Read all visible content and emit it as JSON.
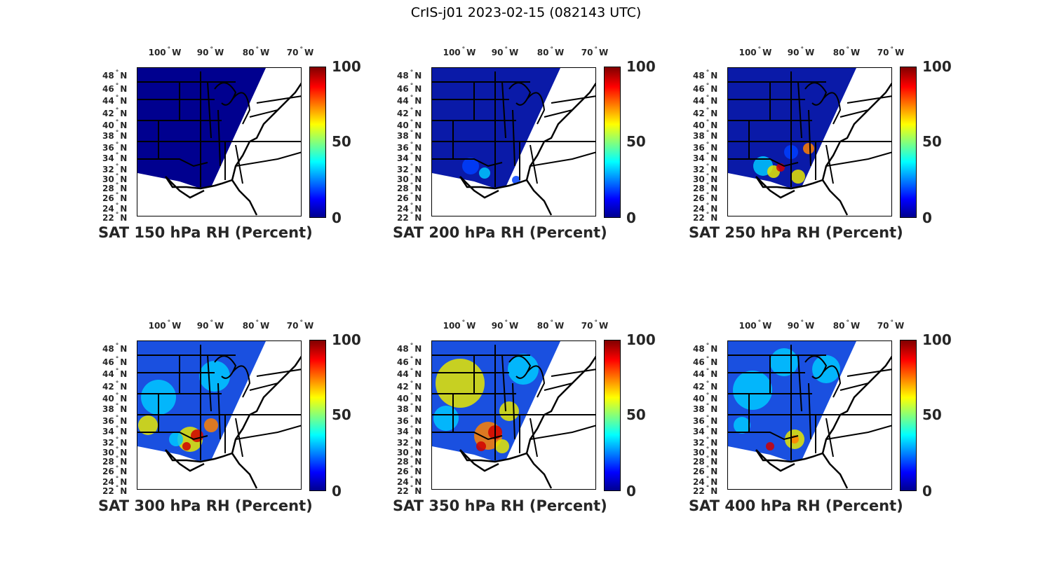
{
  "title": "CrIS-j01 2023-02-15 (082143 UTC)",
  "lon_labels": [
    "100",
    "90",
    "80",
    "70"
  ],
  "lon_suffix": "W",
  "lat_labels": [
    "48",
    "46",
    "44",
    "42",
    "40",
    "38",
    "36",
    "34",
    "32",
    "30",
    "28",
    "26",
    "24",
    "22"
  ],
  "lat_suffix": "N",
  "degree_symbol": "°",
  "colorbar": {
    "ticks": [
      "100",
      "50",
      "0"
    ],
    "min": 0,
    "max": 100,
    "colormap": "jet"
  },
  "panels": [
    {
      "title": "SAT 150 hPa RH (Percent)",
      "level_hpa": 150,
      "moist_level": 0
    },
    {
      "title": "SAT 200 hPa RH (Percent)",
      "level_hpa": 200,
      "moist_level": 1
    },
    {
      "title": "SAT 250 hPa RH (Percent)",
      "level_hpa": 250,
      "moist_level": 2
    },
    {
      "title": "SAT 300 hPa RH (Percent)",
      "level_hpa": 300,
      "moist_level": 3
    },
    {
      "title": "SAT 350 hPa RH (Percent)",
      "level_hpa": 350,
      "moist_level": 4
    },
    {
      "title": "SAT 400 hPa RH (Percent)",
      "level_hpa": 400,
      "moist_level": 3
    }
  ],
  "colors": {
    "low": "#00008f",
    "mid": "#0040ff",
    "cyan": "#00c8ff",
    "yellow": "#e6e600",
    "orange": "#ff8000",
    "red": "#d00000"
  }
}
